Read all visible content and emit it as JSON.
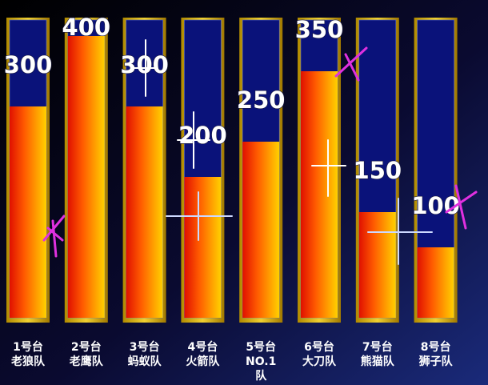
{
  "chart_data": {
    "type": "bar",
    "categories": [
      [
        "1号台",
        "老狼队"
      ],
      [
        "2号台",
        "老鹰队"
      ],
      [
        "3号台",
        "蚂蚁队"
      ],
      [
        "4号台",
        "火箭队"
      ],
      [
        "5号台",
        "NO.1",
        "队"
      ],
      [
        "6号台",
        "大刀队"
      ],
      [
        "7号台",
        "熊猫队"
      ],
      [
        "8号台",
        "狮子队"
      ]
    ],
    "values": [
      300,
      400,
      300,
      200,
      250,
      350,
      150,
      100
    ],
    "ylim": [
      0,
      400
    ]
  }
}
